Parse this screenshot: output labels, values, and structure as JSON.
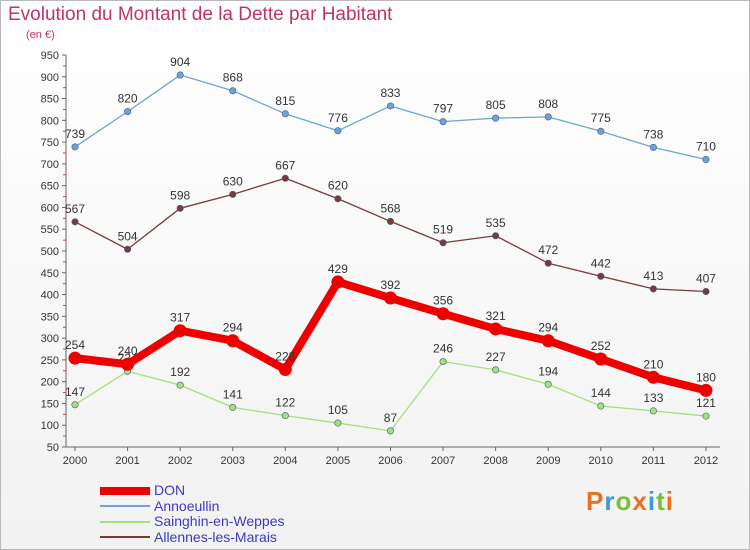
{
  "title": "Evolution du Montant de la Dette par Habitant",
  "subtitle": "(en €)",
  "logo": {
    "text": "Proxiti",
    "colors": [
      "#e8721c",
      "#3b9ad9",
      "#7cbf3a",
      "#e8721c",
      "#3b9ad9",
      "#7cbf3a",
      "#e8721c"
    ]
  },
  "chart_data": {
    "type": "line",
    "title": "Evolution du Montant de la Dette par Habitant",
    "ylabel": "(en €)",
    "xlabel": "",
    "x": [
      "2000",
      "2001",
      "2002",
      "2003",
      "2004",
      "2005",
      "2006",
      "2007",
      "2008",
      "2009",
      "2010",
      "2011",
      "2012"
    ],
    "ylim": [
      50,
      950
    ],
    "yticks": [
      50,
      100,
      150,
      200,
      250,
      300,
      350,
      400,
      450,
      500,
      550,
      600,
      650,
      700,
      750,
      800,
      850,
      900,
      950
    ],
    "grid": false,
    "legend": "bottom-left",
    "series": [
      {
        "name": "DON",
        "color": "#ee0000",
        "width": "thick",
        "values": [
          254,
          240,
          317,
          294,
          228,
          429,
          392,
          356,
          321,
          294,
          252,
          210,
          180
        ]
      },
      {
        "name": "Annoeullin",
        "color": "#6fa3d8",
        "width": "thin",
        "values": [
          739,
          820,
          904,
          868,
          815,
          776,
          833,
          797,
          805,
          808,
          775,
          738,
          710
        ]
      },
      {
        "name": "Sainghin-en-Weppes",
        "color": "#a6e07a",
        "width": "thin",
        "values": [
          147,
          224,
          192,
          141,
          122,
          105,
          87,
          246,
          227,
          194,
          144,
          133,
          121
        ]
      },
      {
        "name": "Allennes-les-Marais",
        "color": "#7a3a3a",
        "width": "thin",
        "values": [
          567,
          504,
          598,
          630,
          667,
          620,
          568,
          519,
          535,
          472,
          442,
          413,
          407
        ]
      }
    ]
  }
}
